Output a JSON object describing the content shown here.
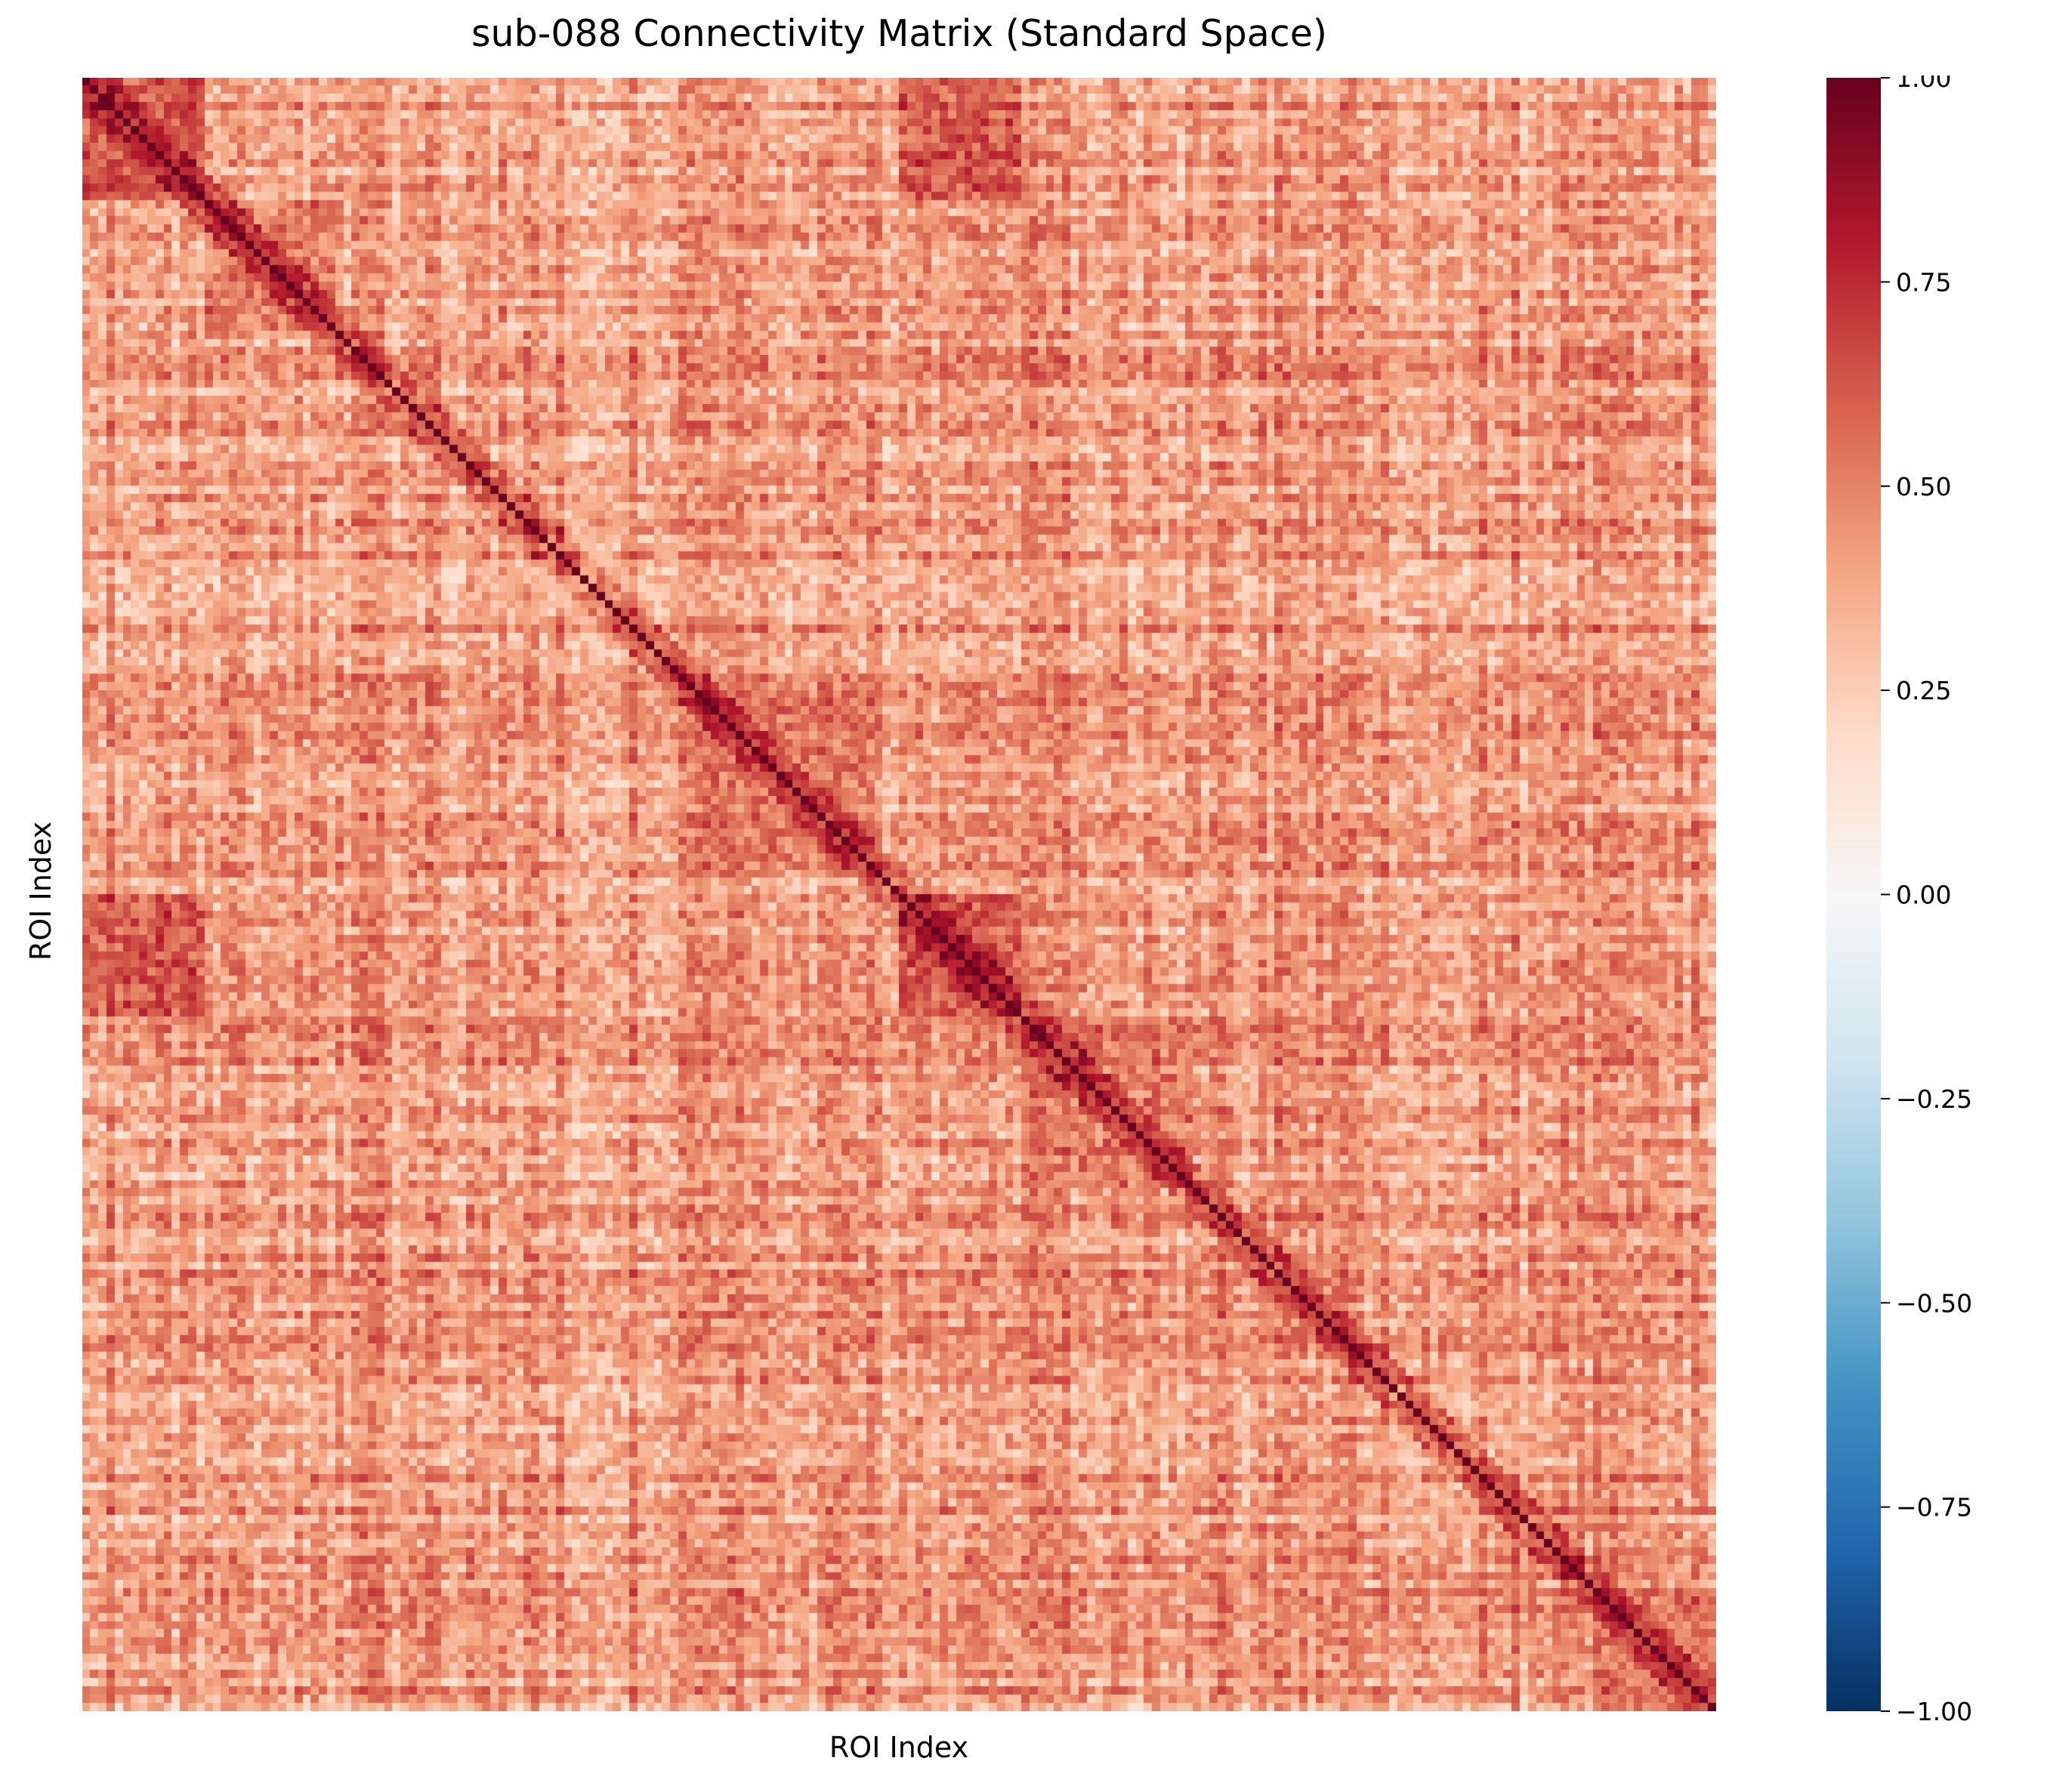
{
  "chart_data": {
    "type": "heatmap",
    "title": "sub-088 Connectivity Matrix (Standard Space)",
    "xlabel": "ROI Index",
    "ylabel": "ROI Index",
    "n_rois": 200,
    "diagonal_value": 1.0,
    "value_range": [
      -1.0,
      1.0
    ],
    "colormap": "RdBu_r",
    "colorbar": {
      "ticks": [
        1.0,
        0.75,
        0.5,
        0.25,
        0.0,
        -0.25,
        -0.5,
        -0.75,
        -1.0
      ],
      "tick_labels": [
        "1.00",
        "0.75",
        "0.50",
        "0.25",
        "0.00",
        "−0.25",
        "−0.50",
        "−0.75",
        "−1.00"
      ],
      "colors": [
        "#053061",
        "#2166ac",
        "#4393c3",
        "#92c5de",
        "#d1e5f0",
        "#f7f7f7",
        "#fddbc7",
        "#f4a582",
        "#d6604d",
        "#b2182b",
        "#67001f"
      ]
    },
    "x_tick_labels_shown": false,
    "y_tick_labels_shown": false,
    "typical_offdiagonal_range": [
      0.1,
      0.6
    ],
    "high_correlation_blocks": [
      {
        "rows": [
          0,
          14
        ],
        "cols": [
          0,
          14
        ],
        "approx_value": 0.75
      },
      {
        "rows": [
          0,
          14
        ],
        "cols": [
          100,
          114
        ],
        "approx_value": 0.75
      },
      {
        "rows": [
          100,
          114
        ],
        "cols": [
          0,
          14
        ],
        "approx_value": 0.75
      },
      {
        "rows": [
          100,
          114
        ],
        "cols": [
          100,
          114
        ],
        "approx_value": 0.75
      },
      {
        "rows": [
          15,
          30
        ],
        "cols": [
          15,
          30
        ],
        "approx_value": 0.6
      },
      {
        "rows": [
          115,
          135
        ],
        "cols": [
          115,
          135
        ],
        "approx_value": 0.6
      },
      {
        "rows": [
          75,
          95
        ],
        "cols": [
          75,
          95
        ],
        "approx_value": 0.6
      },
      {
        "rows": [
          185,
          199
        ],
        "cols": [
          185,
          199
        ],
        "approx_value": 0.6
      }
    ]
  }
}
